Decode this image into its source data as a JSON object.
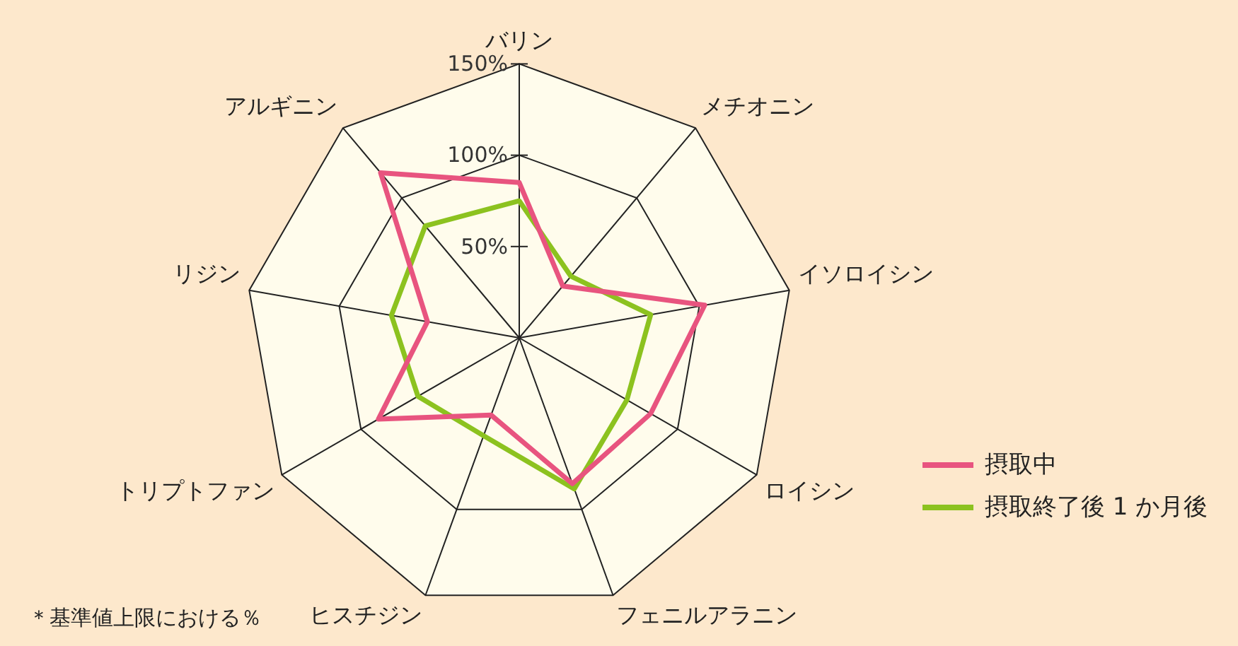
{
  "chart_data": {
    "type": "radar",
    "categories": [
      "バリン",
      "メチオニン",
      "イソロイシン",
      "ロイシン",
      "フェニルアラニン",
      "ヒスチジン",
      "トリプトファン",
      "リジン",
      "アルギニン"
    ],
    "series": [
      {
        "name": "摂取中",
        "color": "#e8547f",
        "values": [
          85,
          37,
          103,
          83,
          85,
          45,
          89,
          51,
          118
        ]
      },
      {
        "name": "摂取終了後 1 か月後",
        "color": "#8cc21f",
        "values": [
          75,
          44,
          73,
          68,
          88,
          57,
          64,
          71,
          80
        ]
      }
    ],
    "ylim": [
      0,
      150
    ],
    "yticks": [
      {
        "value": 50,
        "label": "50%"
      },
      {
        "value": 100,
        "label": "100%"
      },
      {
        "value": 150,
        "label": "150%"
      }
    ],
    "grid": true,
    "legend": "bottom right",
    "marker": "none",
    "line_style": "solid",
    "annotations": [
      "＊基準値上限における％"
    ]
  }
}
